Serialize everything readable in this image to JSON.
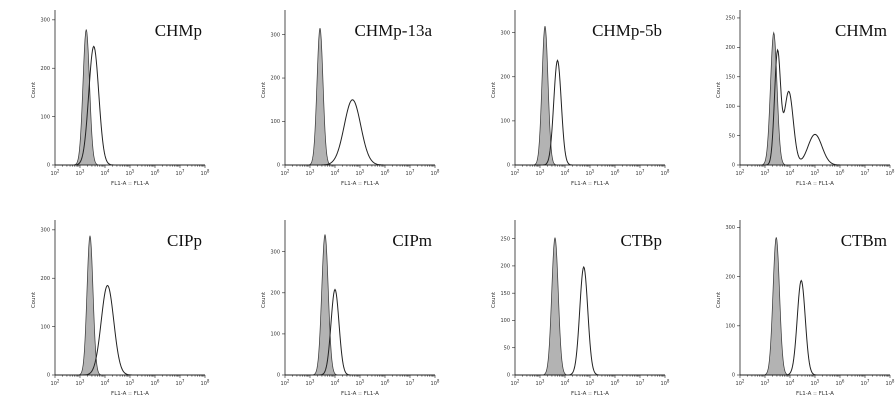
{
  "chart_data": [
    {
      "type": "histogram",
      "title": "CHMp",
      "xlabel": "FL1-A :: FL1-A",
      "ylabel": "Count",
      "x_scale": "log",
      "x_ticks": [
        "10^2",
        "10^3",
        "10^4",
        "10^5",
        "10^6",
        "10^7",
        "10^8"
      ],
      "y_ticks": [
        0,
        100,
        200,
        300
      ],
      "ylim": [
        0,
        310
      ],
      "series": [
        {
          "role": "control",
          "fill": "#b3b3b3",
          "peaks": [
            {
              "center": 3.25,
              "width": 0.13,
              "height": 280
            }
          ]
        },
        {
          "role": "sample",
          "fill": "none",
          "peaks": [
            {
              "center": 3.55,
              "width": 0.2,
              "height": 245
            }
          ]
        }
      ]
    },
    {
      "type": "histogram",
      "title": "CHMp-13a",
      "xlabel": "FL1-A :: FL1-A",
      "ylabel": "Count",
      "x_scale": "log",
      "x_ticks": [
        "10^2",
        "10^3",
        "10^4",
        "10^5",
        "10^6",
        "10^7",
        "10^8"
      ],
      "y_ticks": [
        0,
        100,
        200,
        300
      ],
      "ylim": [
        0,
        345
      ],
      "series": [
        {
          "role": "control",
          "fill": "#b3b3b3",
          "peaks": [
            {
              "center": 3.4,
              "width": 0.12,
              "height": 315
            }
          ]
        },
        {
          "role": "sample",
          "fill": "none",
          "peaks": [
            {
              "center": 4.7,
              "width": 0.33,
              "height": 150
            }
          ]
        }
      ]
    },
    {
      "type": "histogram",
      "title": "CHMp-5b",
      "xlabel": "FL1-A :: FL1-A",
      "ylabel": "Count",
      "x_scale": "log",
      "x_ticks": [
        "10^2",
        "10^3",
        "10^4",
        "10^5",
        "10^6",
        "10^7",
        "10^8"
      ],
      "y_ticks": [
        0,
        100,
        200,
        300
      ],
      "ylim": [
        0,
        340
      ],
      "series": [
        {
          "role": "control",
          "fill": "#b3b3b3",
          "peaks": [
            {
              "center": 3.2,
              "width": 0.12,
              "height": 315
            }
          ]
        },
        {
          "role": "sample",
          "fill": "none",
          "peaks": [
            {
              "center": 3.7,
              "width": 0.15,
              "height": 237
            }
          ]
        }
      ]
    },
    {
      "type": "histogram",
      "title": "CHMm",
      "xlabel": "FL1-A :: FL1-A",
      "ylabel": "Count",
      "x_scale": "log",
      "x_ticks": [
        "10^2",
        "10^3",
        "10^4",
        "10^5",
        "10^6",
        "10^7",
        "10^8"
      ],
      "y_ticks": [
        0,
        50,
        100,
        150,
        200,
        250
      ],
      "ylim": [
        0,
        255
      ],
      "series": [
        {
          "role": "control",
          "fill": "#b3b3b3",
          "peaks": [
            {
              "center": 3.35,
              "width": 0.13,
              "height": 225
            }
          ]
        },
        {
          "role": "sample",
          "fill": "none",
          "peaks": [
            {
              "center": 3.5,
              "width": 0.12,
              "height": 190
            },
            {
              "center": 3.95,
              "width": 0.18,
              "height": 125
            },
            {
              "center": 5.0,
              "width": 0.28,
              "height": 52
            }
          ]
        }
      ]
    },
    {
      "type": "histogram",
      "title": "CIPp",
      "xlabel": "FL1-A :: FL1-A",
      "ylabel": "Count",
      "x_scale": "log",
      "x_ticks": [
        "10^2",
        "10^3",
        "10^4",
        "10^5",
        "10^6",
        "10^7",
        "10^8"
      ],
      "y_ticks": [
        0,
        100,
        200,
        300
      ],
      "ylim": [
        0,
        310
      ],
      "series": [
        {
          "role": "control",
          "fill": "#b3b3b3",
          "peaks": [
            {
              "center": 3.4,
              "width": 0.12,
              "height": 288
            }
          ]
        },
        {
          "role": "sample",
          "fill": "none",
          "peaks": [
            {
              "center": 4.1,
              "width": 0.25,
              "height": 185
            }
          ]
        }
      ]
    },
    {
      "type": "histogram",
      "title": "CIPm",
      "xlabel": "FL1-A :: FL1-A",
      "ylabel": "Count",
      "x_scale": "log",
      "x_ticks": [
        "10^2",
        "10^3",
        "10^4",
        "10^5",
        "10^6",
        "10^7",
        "10^8"
      ],
      "y_ticks": [
        0,
        100,
        200,
        300
      ],
      "ylim": [
        0,
        365
      ],
      "series": [
        {
          "role": "control",
          "fill": "#b3b3b3",
          "peaks": [
            {
              "center": 3.6,
              "width": 0.13,
              "height": 342
            }
          ]
        },
        {
          "role": "sample",
          "fill": "none",
          "peaks": [
            {
              "center": 4.0,
              "width": 0.16,
              "height": 208
            }
          ]
        }
      ]
    },
    {
      "type": "histogram",
      "title": "CTBp",
      "xlabel": "FL1-A :: FL1-A",
      "ylabel": "Count",
      "x_scale": "log",
      "x_ticks": [
        "10^2",
        "10^3",
        "10^4",
        "10^5",
        "10^6",
        "10^7",
        "10^8"
      ],
      "y_ticks": [
        0,
        50,
        100,
        150,
        200,
        250
      ],
      "ylim": [
        0,
        275
      ],
      "series": [
        {
          "role": "control",
          "fill": "#b3b3b3",
          "peaks": [
            {
              "center": 3.6,
              "width": 0.13,
              "height": 252
            }
          ]
        },
        {
          "role": "sample",
          "fill": "none",
          "peaks": [
            {
              "center": 4.75,
              "width": 0.16,
              "height": 198
            }
          ]
        }
      ]
    },
    {
      "type": "histogram",
      "title": "CTBm",
      "xlabel": "FL1-A :: FL1-A",
      "ylabel": "Count",
      "x_scale": "log",
      "x_ticks": [
        "10^2",
        "10^3",
        "10^4",
        "10^5",
        "10^6",
        "10^7",
        "10^8"
      ],
      "y_ticks": [
        0,
        100,
        200,
        300
      ],
      "ylim": [
        0,
        305
      ],
      "series": [
        {
          "role": "control",
          "fill": "#b3b3b3",
          "peaks": [
            {
              "center": 3.45,
              "width": 0.13,
              "height": 280
            }
          ]
        },
        {
          "role": "sample",
          "fill": "none",
          "peaks": [
            {
              "center": 4.45,
              "width": 0.16,
              "height": 192
            }
          ]
        }
      ]
    }
  ]
}
